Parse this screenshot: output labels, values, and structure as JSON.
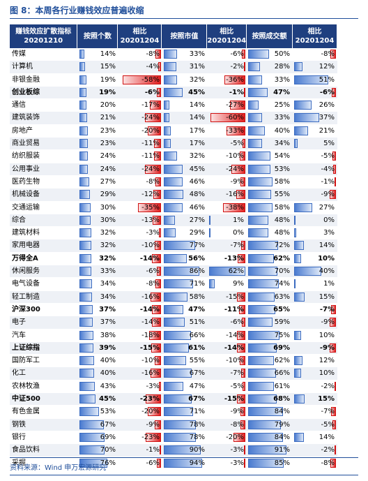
{
  "title": "图 8：本周各行业赚钱效应普遍收缩",
  "table": {
    "header": [
      [
        "赚钱效应扩散指标",
        "20201210"
      ],
      [
        "按照个数"
      ],
      [
        "相比",
        "20201204"
      ],
      [
        "按照市值"
      ],
      [
        "相比",
        "20201204"
      ],
      [
        "按照成交额"
      ],
      [
        "相比",
        "20201204"
      ]
    ],
    "change_scale": 60,
    "level_scale": 100,
    "rows": [
      {
        "name": "传媒",
        "cells": [
          {
            "value": 14,
            "label": "14%"
          },
          {
            "value": -8,
            "label": "-8%"
          },
          {
            "value": 33,
            "label": "33%"
          },
          {
            "value": -6,
            "label": "-6%"
          },
          {
            "value": 50,
            "label": "50%"
          },
          {
            "value": -8,
            "label": "-8%"
          }
        ]
      },
      {
        "name": "计算机",
        "cells": [
          {
            "value": 15,
            "label": "15%"
          },
          {
            "value": -4,
            "label": "-4%"
          },
          {
            "value": 31,
            "label": "31%"
          },
          {
            "value": -2,
            "label": "-2%"
          },
          {
            "value": 28,
            "label": "28%"
          },
          {
            "value": 12,
            "label": "12%"
          }
        ]
      },
      {
        "name": "非银金融",
        "cells": [
          {
            "value": 19,
            "label": "19%"
          },
          {
            "value": -58,
            "label": "-58%"
          },
          {
            "value": 32,
            "label": "32%"
          },
          {
            "value": -36,
            "label": "-36%"
          },
          {
            "value": 33,
            "label": "33%"
          },
          {
            "value": 51,
            "label": "51%"
          }
        ]
      },
      {
        "name": "创业板综",
        "bold": true,
        "cells": [
          {
            "value": 19,
            "label": "19%"
          },
          {
            "value": -6,
            "label": "-6%"
          },
          {
            "value": 45,
            "label": "45%"
          },
          {
            "value": -1,
            "label": "-1%"
          },
          {
            "value": 47,
            "label": "47%"
          },
          {
            "value": -6,
            "label": "-6%"
          }
        ]
      },
      {
        "name": "通信",
        "cells": [
          {
            "value": 20,
            "label": "20%"
          },
          {
            "value": -17,
            "label": "-17%"
          },
          {
            "value": 14,
            "label": "14%"
          },
          {
            "value": -27,
            "label": "-27%"
          },
          {
            "value": 25,
            "label": "25%"
          },
          {
            "value": 26,
            "label": "26%"
          }
        ]
      },
      {
        "name": "建筑装饰",
        "cells": [
          {
            "value": 21,
            "label": "21%"
          },
          {
            "value": -24,
            "label": "-24%"
          },
          {
            "value": 14,
            "label": "14%"
          },
          {
            "value": -60,
            "label": "-60%"
          },
          {
            "value": 33,
            "label": "33%"
          },
          {
            "value": 37,
            "label": "37%"
          }
        ]
      },
      {
        "name": "房地产",
        "cells": [
          {
            "value": 23,
            "label": "23%"
          },
          {
            "value": -20,
            "label": "-20%"
          },
          {
            "value": 17,
            "label": "17%"
          },
          {
            "value": -33,
            "label": "-33%"
          },
          {
            "value": 40,
            "label": "40%"
          },
          {
            "value": 21,
            "label": "21%"
          }
        ]
      },
      {
        "name": "商业贸易",
        "cells": [
          {
            "value": 23,
            "label": "23%"
          },
          {
            "value": -11,
            "label": "-11%"
          },
          {
            "value": 17,
            "label": "17%"
          },
          {
            "value": -5,
            "label": "-5%"
          },
          {
            "value": 34,
            "label": "34%"
          },
          {
            "value": 5,
            "label": "5%"
          }
        ]
      },
      {
        "name": "纺织服装",
        "cells": [
          {
            "value": 24,
            "label": "24%"
          },
          {
            "value": -11,
            "label": "-11%"
          },
          {
            "value": 32,
            "label": "32%"
          },
          {
            "value": -10,
            "label": "-10%"
          },
          {
            "value": 54,
            "label": "54%"
          },
          {
            "value": -5,
            "label": "-5%"
          }
        ]
      },
      {
        "name": "公用事业",
        "cells": [
          {
            "value": 24,
            "label": "24%"
          },
          {
            "value": -24,
            "label": "-24%"
          },
          {
            "value": 45,
            "label": "45%"
          },
          {
            "value": -24,
            "label": "-24%"
          },
          {
            "value": 53,
            "label": "53%"
          },
          {
            "value": -4,
            "label": "-4%"
          }
        ]
      },
      {
        "name": "医药生物",
        "cells": [
          {
            "value": 27,
            "label": "27%"
          },
          {
            "value": -8,
            "label": "-8%"
          },
          {
            "value": 46,
            "label": "46%"
          },
          {
            "value": -9,
            "label": "-9%"
          },
          {
            "value": 58,
            "label": "58%"
          },
          {
            "value": -1,
            "label": "-1%"
          }
        ]
      },
      {
        "name": "机械设备",
        "cells": [
          {
            "value": 29,
            "label": "29%"
          },
          {
            "value": -12,
            "label": "-12%"
          },
          {
            "value": 48,
            "label": "48%"
          },
          {
            "value": -16,
            "label": "-16%"
          },
          {
            "value": 55,
            "label": "55%"
          },
          {
            "value": -9,
            "label": "-9%"
          }
        ]
      },
      {
        "name": "交通运输",
        "cells": [
          {
            "value": 30,
            "label": "30%"
          },
          {
            "value": -35,
            "label": "-35%"
          },
          {
            "value": 46,
            "label": "46%"
          },
          {
            "value": -38,
            "label": "-38%"
          },
          {
            "value": 58,
            "label": "58%"
          },
          {
            "value": 27,
            "label": "27%"
          }
        ]
      },
      {
        "name": "综合",
        "cells": [
          {
            "value": 30,
            "label": "30%"
          },
          {
            "value": -13,
            "label": "-13%"
          },
          {
            "value": 27,
            "label": "27%"
          },
          {
            "value": 1,
            "label": "1%"
          },
          {
            "value": 48,
            "label": "48%"
          },
          {
            "value": 0,
            "label": "0%"
          }
        ]
      },
      {
        "name": "建筑材料",
        "cells": [
          {
            "value": 32,
            "label": "32%"
          },
          {
            "value": -3,
            "label": "-3%"
          },
          {
            "value": 29,
            "label": "29%"
          },
          {
            "value": 0,
            "label": "0%"
          },
          {
            "value": 48,
            "label": "48%"
          },
          {
            "value": 3,
            "label": "3%"
          }
        ]
      },
      {
        "name": "家用电器",
        "cells": [
          {
            "value": 32,
            "label": "32%"
          },
          {
            "value": -10,
            "label": "-10%"
          },
          {
            "value": 77,
            "label": "77%"
          },
          {
            "value": -7,
            "label": "-7%"
          },
          {
            "value": 72,
            "label": "72%"
          },
          {
            "value": 14,
            "label": "14%"
          }
        ]
      },
      {
        "name": "万得全A",
        "bold": true,
        "cells": [
          {
            "value": 32,
            "label": "32%"
          },
          {
            "value": -14,
            "label": "-14%"
          },
          {
            "value": 56,
            "label": "56%"
          },
          {
            "value": -13,
            "label": "-13%"
          },
          {
            "value": 62,
            "label": "62%"
          },
          {
            "value": 10,
            "label": "10%"
          }
        ]
      },
      {
        "name": "休闲服务",
        "cells": [
          {
            "value": 33,
            "label": "33%"
          },
          {
            "value": -6,
            "label": "-6%"
          },
          {
            "value": 86,
            "label": "86%"
          },
          {
            "value": 62,
            "label": "62%"
          },
          {
            "value": 70,
            "label": "70%"
          },
          {
            "value": 40,
            "label": "40%"
          }
        ]
      },
      {
        "name": "电气设备",
        "cells": [
          {
            "value": 34,
            "label": "34%"
          },
          {
            "value": -8,
            "label": "-8%"
          },
          {
            "value": 71,
            "label": "71%"
          },
          {
            "value": 9,
            "label": "9%"
          },
          {
            "value": 74,
            "label": "74%"
          },
          {
            "value": 1,
            "label": "1%"
          }
        ]
      },
      {
        "name": "轻工制造",
        "cells": [
          {
            "value": 34,
            "label": "34%"
          },
          {
            "value": -16,
            "label": "-16%"
          },
          {
            "value": 58,
            "label": "58%"
          },
          {
            "value": -15,
            "label": "-15%"
          },
          {
            "value": 63,
            "label": "63%"
          },
          {
            "value": 15,
            "label": "15%"
          }
        ]
      },
      {
        "name": "沪深300",
        "bold": true,
        "cells": [
          {
            "value": 37,
            "label": "37%"
          },
          {
            "value": -14,
            "label": "-14%"
          },
          {
            "value": 47,
            "label": "47%"
          },
          {
            "value": -11,
            "label": "-11%"
          },
          {
            "value": 65,
            "label": "65%"
          },
          {
            "value": -7,
            "label": "-7%"
          }
        ]
      },
      {
        "name": "电子",
        "cells": [
          {
            "value": 37,
            "label": "37%"
          },
          {
            "value": -14,
            "label": "-14%"
          },
          {
            "value": 51,
            "label": "51%"
          },
          {
            "value": -6,
            "label": "-6%"
          },
          {
            "value": 59,
            "label": "59%"
          },
          {
            "value": -9,
            "label": "-9%"
          }
        ]
      },
      {
        "name": "汽车",
        "cells": [
          {
            "value": 38,
            "label": "38%"
          },
          {
            "value": -18,
            "label": "-18%"
          },
          {
            "value": 66,
            "label": "66%"
          },
          {
            "value": -14,
            "label": "-14%"
          },
          {
            "value": 75,
            "label": "75%"
          },
          {
            "value": 10,
            "label": "10%"
          }
        ]
      },
      {
        "name": "上证综指",
        "bold": true,
        "cells": [
          {
            "value": 39,
            "label": "39%"
          },
          {
            "value": -15,
            "label": "-15%"
          },
          {
            "value": 61,
            "label": "61%"
          },
          {
            "value": -14,
            "label": "-14%"
          },
          {
            "value": 69,
            "label": "69%"
          },
          {
            "value": -9,
            "label": "-9%"
          }
        ]
      },
      {
        "name": "国防军工",
        "cells": [
          {
            "value": 40,
            "label": "40%"
          },
          {
            "value": -10,
            "label": "-10%"
          },
          {
            "value": 55,
            "label": "55%"
          },
          {
            "value": -10,
            "label": "-10%"
          },
          {
            "value": 62,
            "label": "62%"
          },
          {
            "value": 12,
            "label": "12%"
          }
        ]
      },
      {
        "name": "化工",
        "cells": [
          {
            "value": 40,
            "label": "40%"
          },
          {
            "value": -16,
            "label": "-16%"
          },
          {
            "value": 67,
            "label": "67%"
          },
          {
            "value": -7,
            "label": "-7%"
          },
          {
            "value": 66,
            "label": "66%"
          },
          {
            "value": 10,
            "label": "10%"
          }
        ]
      },
      {
        "name": "农林牧渔",
        "cells": [
          {
            "value": 43,
            "label": "43%"
          },
          {
            "value": -3,
            "label": "-3%"
          },
          {
            "value": 47,
            "label": "47%"
          },
          {
            "value": -5,
            "label": "-5%"
          },
          {
            "value": 61,
            "label": "61%"
          },
          {
            "value": -2,
            "label": "-2%"
          }
        ]
      },
      {
        "name": "中证500",
        "bold": true,
        "cells": [
          {
            "value": 45,
            "label": "45%"
          },
          {
            "value": -23,
            "label": "-23%"
          },
          {
            "value": 67,
            "label": "67%"
          },
          {
            "value": -15,
            "label": "-15%"
          },
          {
            "value": 68,
            "label": "68%"
          },
          {
            "value": 15,
            "label": "15%"
          }
        ]
      },
      {
        "name": "有色金属",
        "cells": [
          {
            "value": 53,
            "label": "53%"
          },
          {
            "value": -20,
            "label": "-20%"
          },
          {
            "value": 71,
            "label": "71%"
          },
          {
            "value": -9,
            "label": "-9%"
          },
          {
            "value": 84,
            "label": "84%"
          },
          {
            "value": -7,
            "label": "-7%"
          }
        ]
      },
      {
        "name": "钢铁",
        "cells": [
          {
            "value": 67,
            "label": "67%"
          },
          {
            "value": -9,
            "label": "-9%"
          },
          {
            "value": 78,
            "label": "78%"
          },
          {
            "value": -8,
            "label": "-8%"
          },
          {
            "value": 79,
            "label": "79%"
          },
          {
            "value": -5,
            "label": "-5%"
          }
        ]
      },
      {
        "name": "银行",
        "cells": [
          {
            "value": 69,
            "label": "69%"
          },
          {
            "value": -23,
            "label": "-23%"
          },
          {
            "value": 78,
            "label": "78%"
          },
          {
            "value": -20,
            "label": "-20%"
          },
          {
            "value": 84,
            "label": "84%"
          },
          {
            "value": 14,
            "label": "14%"
          }
        ]
      },
      {
        "name": "食品饮料",
        "cells": [
          {
            "value": 70,
            "label": "70%"
          },
          {
            "value": -1,
            "label": "-1%"
          },
          {
            "value": 90,
            "label": "90%"
          },
          {
            "value": -3,
            "label": "-3%"
          },
          {
            "value": 91,
            "label": "91%"
          },
          {
            "value": -2,
            "label": "-2%"
          }
        ]
      },
      {
        "name": "采掘",
        "cells": [
          {
            "value": 76,
            "label": "76%"
          },
          {
            "value": -6,
            "label": "-6%"
          },
          {
            "value": 94,
            "label": "94%"
          },
          {
            "value": -3,
            "label": "-3%"
          },
          {
            "value": 85,
            "label": "85%"
          },
          {
            "value": -8,
            "label": "-8%"
          }
        ]
      }
    ]
  },
  "source": "资料来源：Wind 申万宏源研究"
}
